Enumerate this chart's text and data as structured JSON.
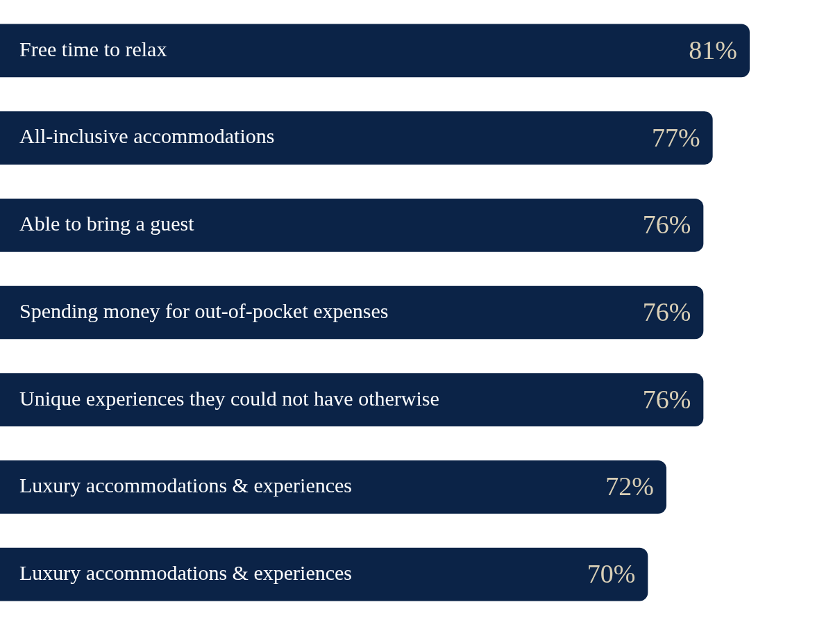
{
  "chart_data": {
    "type": "bar",
    "orientation": "horizontal",
    "categories": [
      "Free time to relax",
      "All-inclusive accommodations",
      "Able to bring a guest",
      "Spending money for out-of-pocket expenses",
      "Unique experiences they could not have otherwise",
      "Luxury accommodations & experiences",
      "Luxury accommodations & experiences"
    ],
    "values": [
      81,
      77,
      76,
      76,
      76,
      72,
      70
    ],
    "value_labels": [
      "81%",
      "77%",
      "76%",
      "76%",
      "76%",
      "72%",
      "70%"
    ],
    "color": "#0b2347",
    "legend": false
  }
}
